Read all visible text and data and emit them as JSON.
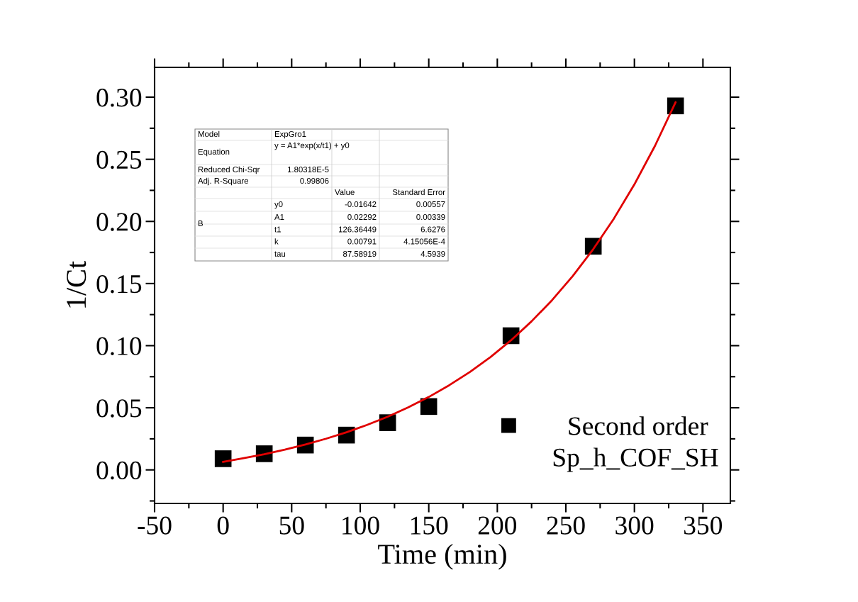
{
  "chart_data": {
    "type": "scatter",
    "xlabel": "Time (min)",
    "ylabel": "1/Ct",
    "xlim": [
      -50,
      370
    ],
    "xticks": [
      -50,
      0,
      50,
      100,
      150,
      200,
      250,
      300,
      350
    ],
    "ylim": [
      -0.027,
      0.324
    ],
    "yticks": [
      {
        "value": 0,
        "label": "0.00"
      },
      {
        "value": 0.05,
        "label": "0.05"
      },
      {
        "value": 0.1,
        "label": "0.10"
      },
      {
        "value": 0.15,
        "label": "0.15"
      },
      {
        "value": 0.2,
        "label": "0.20"
      },
      {
        "value": 0.25,
        "label": "0.25"
      },
      {
        "value": 0.3,
        "label": "0.30"
      }
    ],
    "grid": false,
    "legend": "bottom right",
    "series": [
      {
        "name": "Second order",
        "color": "#000000",
        "marker": "square",
        "x": [
          0,
          30,
          60,
          90,
          120,
          150,
          210,
          270,
          330
        ],
        "values": [
          0.009,
          0.013,
          0.02,
          0.028,
          0.038,
          0.051,
          0.108,
          0.18,
          0.293
        ]
      },
      {
        "type": "line",
        "color": "#e00000",
        "line_style": "solid",
        "marker": "none",
        "x": [
          0,
          15,
          30,
          45,
          60,
          75,
          90,
          105,
          120,
          135,
          150,
          165,
          180,
          195,
          210,
          225,
          240,
          255,
          270,
          285,
          300,
          315,
          330
        ],
        "values": [
          0.0065,
          0.0094,
          0.0126,
          0.0163,
          0.0204,
          0.0251,
          0.0303,
          0.0362,
          0.0428,
          0.0503,
          0.0587,
          0.0682,
          0.0788,
          0.0908,
          0.1043,
          0.1196,
          0.1367,
          0.156,
          0.1777,
          0.2022,
          0.2298,
          0.2608,
          0.2958
        ]
      }
    ],
    "annotations": [
      "Model",
      "ExpGro1",
      "Equation",
      "y = A1*exp(x/t1) + y0",
      "Reduced Chi-Sqr",
      "1.80318E-5",
      "Adj. R-Square",
      "0.99806",
      "Value",
      "Standard Error",
      "y0",
      "-0.01642",
      "0.00557",
      "A1",
      "0.02292",
      "0.00339",
      "B",
      "t1",
      "126.36449",
      "6.6276",
      "k",
      "0.00791",
      "4.15056E-4",
      "tau",
      "87.58919",
      "4.5939",
      "Sp_h_COF_SH"
    ]
  }
}
